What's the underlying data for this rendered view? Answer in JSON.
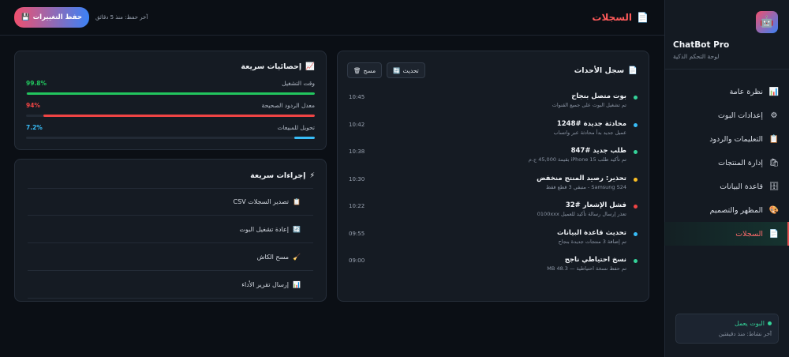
{
  "sidebar": {
    "brand_name": "ChatBot Pro",
    "brand_sub": "لوحة التحكم الذكية",
    "logo_icon": "robot-icon",
    "items": [
      {
        "label": "نظرة عامة",
        "icon": "chart-icon",
        "glyph": "📊"
      },
      {
        "label": "إعدادات البوت",
        "icon": "gear-icon",
        "glyph": "⚙"
      },
      {
        "label": "التعليمات والردود",
        "icon": "clipboard-icon",
        "glyph": "📋"
      },
      {
        "label": "إدارة المنتجات",
        "icon": "shopping-bags-icon",
        "glyph": "🛍"
      },
      {
        "label": "قاعدة البيانات",
        "icon": "database-icon",
        "glyph": "🗄"
      },
      {
        "label": "المظهر والتصميم",
        "icon": "palette-icon",
        "glyph": "🎨"
      },
      {
        "label": "السجلات",
        "icon": "document-icon",
        "glyph": "📄",
        "active": true
      }
    ],
    "status": {
      "label": "البوت يعمل",
      "sub": "آخر نشاط: منذ دقيقتين",
      "color": "#34d399"
    }
  },
  "header": {
    "title": "السجلات",
    "title_glyph": "📄",
    "save_label": "حفظ التغييرات",
    "save_glyph": "💾",
    "last_saved": "آخر حفظ: منذ 5 دقائق"
  },
  "events": {
    "title": "سجل الأحداث",
    "title_glyph": "📄",
    "refresh_label": "تحديث",
    "refresh_glyph": "🔄",
    "clear_label": "مسح",
    "clear_glyph": "🗑",
    "items": [
      {
        "title": "بوت متصل بنجاح",
        "desc": "تم تشغيل البوت على جميع القنوات",
        "time": "10:45",
        "color": "#34d399"
      },
      {
        "title": "محادثة جديدة #1248",
        "desc": "عميل جديد بدأ محادثة عبر واتساب",
        "time": "10:42",
        "color": "#38bdf8"
      },
      {
        "title": "طلب جديد #847",
        "desc": "تم تأكيد طلب iPhone 15 بقيمة 45,000 ج.م",
        "time": "10:38",
        "color": "#34d399"
      },
      {
        "title": "تحذير: رصيد المنتج منخفض",
        "desc": "Samsung S24 - متبقي 3 قطع فقط",
        "time": "10:30",
        "color": "#fbbf24"
      },
      {
        "title": "فشل الإشعار #32",
        "desc": "تعذر إرسال رسالة تأكيد للعميل 0100xxx",
        "time": "10:22",
        "color": "#ef4444"
      },
      {
        "title": "تحديث قاعدة البيانات",
        "desc": "تم إضافة 3 منتجات جديدة بنجاح",
        "time": "09:55",
        "color": "#38bdf8"
      },
      {
        "title": "نسخ احتياطي ناجح",
        "desc": "تم حفظ نسخة احتياطية — 48.3 MB",
        "time": "09:00",
        "color": "#34d399"
      }
    ]
  },
  "stats": {
    "title": "إحصائيات سريعة",
    "title_glyph": "📈",
    "items": [
      {
        "label": "وقت التشغيل",
        "value": "99.8%",
        "fraction": 0.998,
        "color": "#22c55e"
      },
      {
        "label": "معدل الردود الصحيحة",
        "value": "94%",
        "fraction": 0.94,
        "color": "#ef4444"
      },
      {
        "label": "تحويل للمبيعات",
        "value": "7.2%",
        "fraction": 0.072,
        "color": "#38bdf8"
      }
    ]
  },
  "actions": {
    "title": "إجراءات سريعة",
    "title_glyph": "⚡",
    "items": [
      {
        "label": "تصدير السجلات CSV",
        "icon": "clipboard-icon",
        "glyph": "📋"
      },
      {
        "label": "إعادة تشغيل البوت",
        "icon": "refresh-icon",
        "glyph": "🔄"
      },
      {
        "label": "مسح الكاش",
        "icon": "broom-icon",
        "glyph": "🧹"
      },
      {
        "label": "إرسال تقرير الأداء",
        "icon": "chart-icon",
        "glyph": "📊"
      }
    ]
  }
}
